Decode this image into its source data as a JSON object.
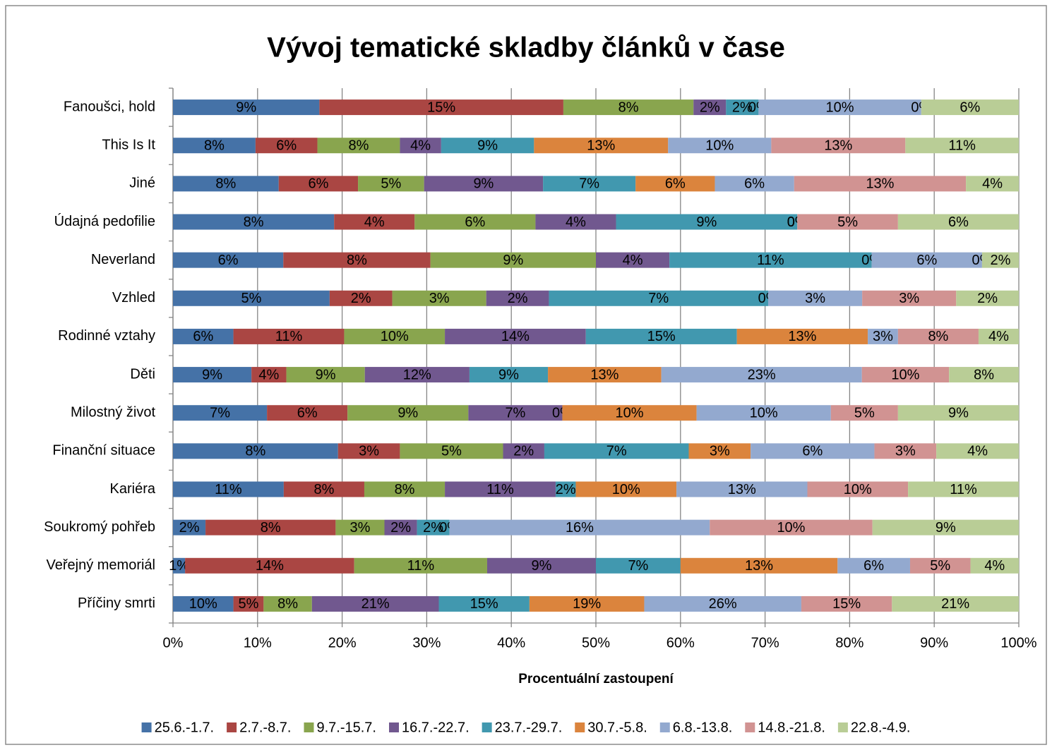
{
  "chart_data": {
    "type": "bar",
    "orientation": "horizontal",
    "stacked": "percent",
    "title": "Vývoj tematické skladby článků v čase",
    "xlabel": "Procentuální zastoupení",
    "categories": [
      "Fanoušci, hold",
      "This Is It",
      "Jiné",
      "Údajná pedofilie",
      "Neverland",
      "Vzhled",
      "Rodinné vztahy",
      "Děti",
      "Milostný život",
      "Finanční situace",
      "Kariéra",
      "Soukromý pohřeb",
      "Veřejný memoriál",
      "Příčiny smrti"
    ],
    "xlim": [
      0,
      100
    ],
    "xticks": [
      {
        "value": 0,
        "label": "0%"
      },
      {
        "value": 10,
        "label": "10%"
      },
      {
        "value": 20,
        "label": "20%"
      },
      {
        "value": 30,
        "label": "30%"
      },
      {
        "value": 40,
        "label": "40%"
      },
      {
        "value": 50,
        "label": "50%"
      },
      {
        "value": 60,
        "label": "60%"
      },
      {
        "value": 70,
        "label": "70%"
      },
      {
        "value": 80,
        "label": "80%"
      },
      {
        "value": 90,
        "label": "90%"
      },
      {
        "value": 100,
        "label": "100%"
      }
    ],
    "grid": true,
    "legend": "bottom",
    "series": [
      {
        "name": "25.6.-1.7.",
        "color": "#4572a7",
        "values": [
          9,
          8,
          8,
          8,
          6,
          5,
          6,
          9,
          7,
          8,
          11,
          2,
          1,
          10
        ],
        "value_labels": [
          "9%",
          "8%",
          "8%",
          "8%",
          "6%",
          "5%",
          "6%",
          "9%",
          "7%",
          "8%",
          "11%",
          "2%",
          "1%",
          "10%"
        ]
      },
      {
        "name": "2.7.-8.7.",
        "color": "#aa4643",
        "values": [
          15,
          6,
          6,
          4,
          8,
          2,
          11,
          4,
          6,
          3,
          8,
          8,
          14,
          5
        ],
        "value_labels": [
          "15%",
          "6%",
          "6%",
          "4%",
          "8%",
          "2%",
          "11%",
          "4%",
          "6%",
          "3%",
          "8%",
          "8%",
          "14%",
          "5%"
        ]
      },
      {
        "name": "9.7.-15.7.",
        "color": "#89a54e",
        "values": [
          8,
          8,
          5,
          6,
          9,
          3,
          10,
          9,
          9,
          5,
          8,
          3,
          11,
          8
        ],
        "value_labels": [
          "8%",
          "8%",
          "5%",
          "6%",
          "9%",
          "3%",
          "10%",
          "9%",
          "9%",
          "5%",
          "8%",
          "3%",
          "11%",
          "8%"
        ]
      },
      {
        "name": "16.7.-22.7.",
        "color": "#71588f",
        "values": [
          2,
          4,
          9,
          4,
          4,
          2,
          14,
          12,
          7,
          2,
          11,
          2,
          9,
          21
        ],
        "value_labels": [
          "2%",
          "4%",
          "9%",
          "4%",
          "4%",
          "2%",
          "14%",
          "12%",
          "7%",
          "2%",
          "11%",
          "2%",
          "9%",
          "21%"
        ]
      },
      {
        "name": "23.7.-29.7.",
        "color": "#4198af",
        "values": [
          2,
          9,
          7,
          9,
          11,
          7,
          15,
          9,
          0,
          7,
          2,
          2,
          7,
          15
        ],
        "value_labels": [
          "2%",
          "9%",
          "7%",
          "9%",
          "11%",
          "7%",
          "15%",
          "9%",
          "0%",
          "7%",
          "2%",
          "2%",
          "7%",
          "15%"
        ]
      },
      {
        "name": "30.7.-5.8.",
        "color": "#db843d",
        "values": [
          0,
          13,
          6,
          0,
          0,
          0,
          13,
          13,
          10,
          3,
          10,
          0,
          13,
          19
        ],
        "value_labels": [
          "0%",
          "13%",
          "6%",
          "0%",
          "0%",
          "0%",
          "13%",
          "13%",
          "10%",
          "3%",
          "10%",
          "0%",
          "13%",
          "19%"
        ]
      },
      {
        "name": "6.8.-13.8.",
        "color": "#93a9cf",
        "values": [
          10,
          10,
          6,
          0,
          6,
          3,
          3,
          23,
          10,
          6,
          13,
          16,
          6,
          26
        ],
        "value_labels": [
          "10%",
          "10%",
          "6%",
          "0%",
          "6%",
          "3%",
          "3%",
          "23%",
          "10%",
          "6%",
          "13%",
          "16%",
          "6%",
          "26%"
        ]
      },
      {
        "name": "14.8.-21.8.",
        "color": "#d19392",
        "values": [
          0,
          13,
          13,
          5,
          0,
          3,
          8,
          10,
          5,
          3,
          10,
          10,
          5,
          15
        ],
        "value_labels": [
          "0%",
          "13%",
          "13%",
          "5%",
          "0%",
          "3%",
          "8%",
          "10%",
          "5%",
          "3%",
          "10%",
          "10%",
          "5%",
          "15%"
        ]
      },
      {
        "name": "22.8.-4.9.",
        "color": "#b9cd96",
        "values": [
          6,
          11,
          4,
          6,
          2,
          2,
          4,
          8,
          9,
          4,
          11,
          9,
          4,
          21
        ],
        "value_labels": [
          "6%",
          "11%",
          "4%",
          "6%",
          "2%",
          "2%",
          "4%",
          "8%",
          "9%",
          "4%",
          "11%",
          "9%",
          "4%",
          "21%"
        ]
      }
    ]
  }
}
